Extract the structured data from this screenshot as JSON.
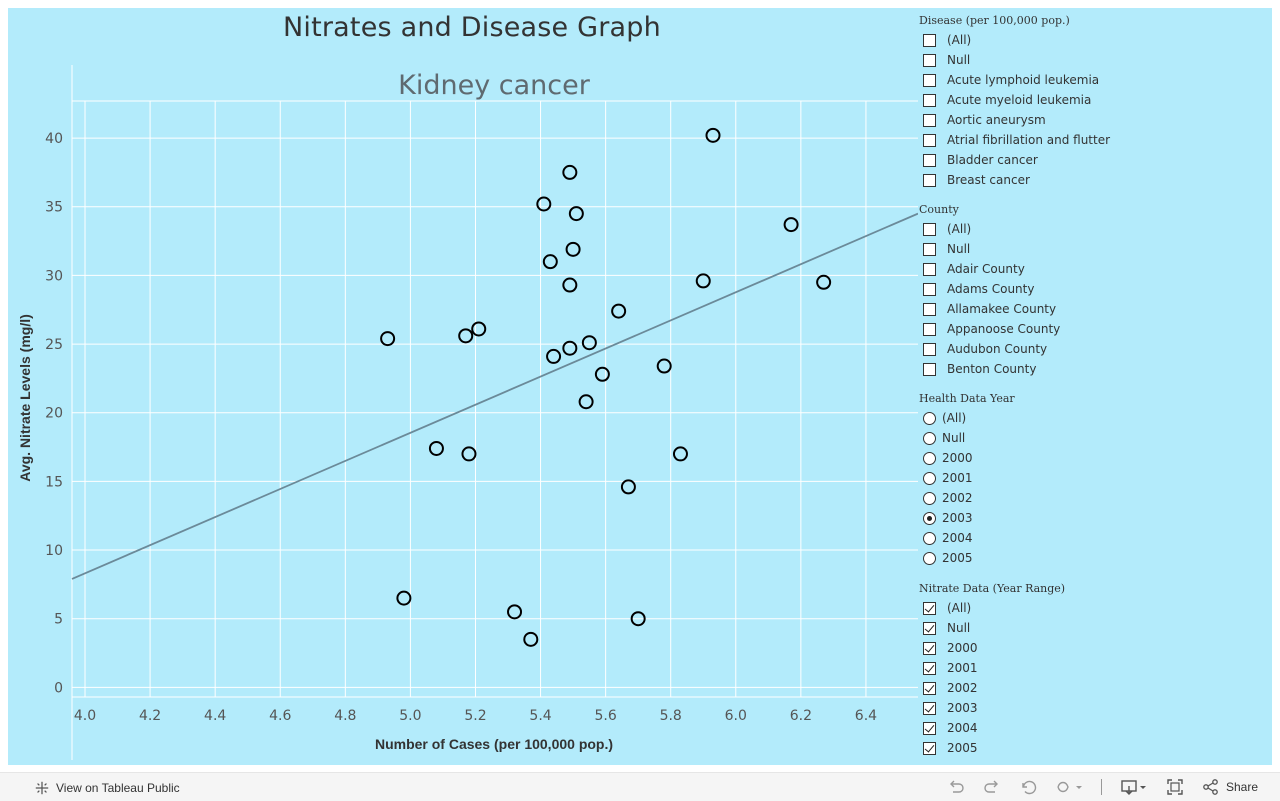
{
  "dashboard": {
    "title": "Nitrates and Disease Graph"
  },
  "chart_data": {
    "type": "scatter",
    "title": "Kidney cancer",
    "xlabel": "Number of Cases (per 100,000 pop.)",
    "ylabel": "Avg. Nitrate Levels (mg/l)",
    "xlim": [
      3.96,
      6.56
    ],
    "ylim": [
      -0.7,
      42.7
    ],
    "xticks": [
      4.0,
      4.2,
      4.4,
      4.6,
      4.8,
      5.0,
      5.2,
      5.4,
      5.6,
      5.8,
      6.0,
      6.2,
      6.4
    ],
    "xtick_labels": [
      "4.0",
      "4.2",
      "4.4",
      "4.6",
      "4.8",
      "5.0",
      "5.2",
      "5.4",
      "5.6",
      "5.8",
      "6.0",
      "6.2",
      "6.4"
    ],
    "yticks": [
      0,
      5,
      10,
      15,
      20,
      25,
      30,
      35,
      40
    ],
    "ytick_labels": [
      "0",
      "5",
      "10",
      "15",
      "20",
      "25",
      "30",
      "35",
      "40"
    ],
    "grid": true,
    "points": [
      {
        "x": 4.93,
        "y": 25.4
      },
      {
        "x": 4.98,
        "y": 6.5
      },
      {
        "x": 5.08,
        "y": 17.4
      },
      {
        "x": 5.17,
        "y": 25.6
      },
      {
        "x": 5.18,
        "y": 17.0
      },
      {
        "x": 5.21,
        "y": 26.1
      },
      {
        "x": 5.32,
        "y": 5.5
      },
      {
        "x": 5.37,
        "y": 3.5
      },
      {
        "x": 5.41,
        "y": 35.2
      },
      {
        "x": 5.43,
        "y": 31.0
      },
      {
        "x": 5.44,
        "y": 24.1
      },
      {
        "x": 5.49,
        "y": 29.3
      },
      {
        "x": 5.49,
        "y": 24.7
      },
      {
        "x": 5.49,
        "y": 37.5
      },
      {
        "x": 5.5,
        "y": 31.9
      },
      {
        "x": 5.51,
        "y": 34.5
      },
      {
        "x": 5.54,
        "y": 20.8
      },
      {
        "x": 5.55,
        "y": 25.1
      },
      {
        "x": 5.59,
        "y": 22.8
      },
      {
        "x": 5.64,
        "y": 27.4
      },
      {
        "x": 5.67,
        "y": 14.6
      },
      {
        "x": 5.7,
        "y": 5.0
      },
      {
        "x": 5.78,
        "y": 23.4
      },
      {
        "x": 5.83,
        "y": 17.0
      },
      {
        "x": 5.9,
        "y": 29.6
      },
      {
        "x": 5.93,
        "y": 40.2
      },
      {
        "x": 6.17,
        "y": 33.7
      },
      {
        "x": 6.27,
        "y": 29.5
      }
    ],
    "trend_line": {
      "x1": 3.96,
      "y1": 7.9,
      "x2": 6.56,
      "y2": 34.5
    },
    "colors": {
      "background": "#b3ebfb",
      "marker": "#000000",
      "trend": "#6b8a99",
      "grid": "#ffffff"
    }
  },
  "filters": {
    "disease": {
      "title": "Disease (per 100,000 pop.)",
      "options": [
        "(All)",
        "Null",
        "Acute lymphoid leukemia",
        "Acute myeloid leukemia",
        "Aortic aneurysm",
        "Atrial fibrillation and flutter",
        "Bladder cancer",
        "Breast cancer"
      ]
    },
    "county": {
      "title": "County",
      "options": [
        "(All)",
        "Null",
        "Adair County",
        "Adams County",
        "Allamakee County",
        "Appanoose County",
        "Audubon County",
        "Benton County"
      ]
    },
    "health_year": {
      "title": "Health Data Year",
      "options": [
        "(All)",
        "Null",
        "2000",
        "2001",
        "2002",
        "2003",
        "2004",
        "2005"
      ],
      "selected": "2003"
    },
    "nitrate_range": {
      "title": "Nitrate Data (Year Range)",
      "options": [
        "(All)",
        "Null",
        "2000",
        "2001",
        "2002",
        "2003",
        "2004",
        "2005"
      ]
    }
  },
  "footer": {
    "view_label": "View on Tableau Public",
    "share_label": "Share"
  }
}
